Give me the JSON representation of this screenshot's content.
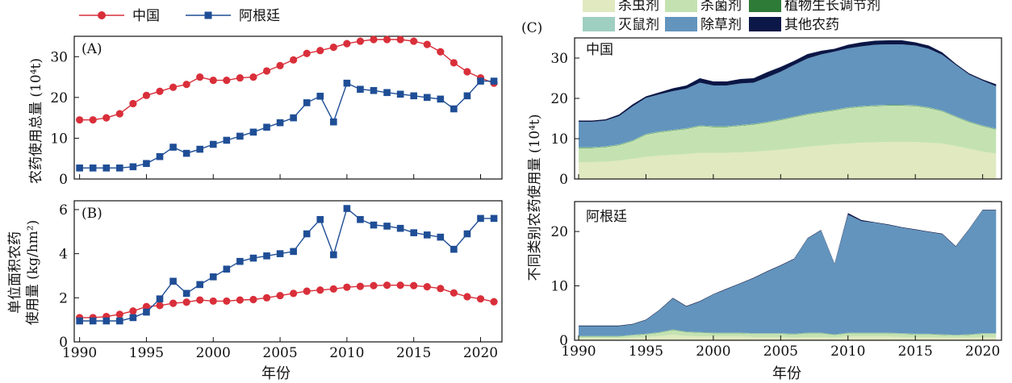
{
  "figure": {
    "legend_top": [
      {
        "label": "中国",
        "color": "#d92f3a",
        "marker": "circle"
      },
      {
        "label": "阿根廷",
        "color": "#1f4e96",
        "marker": "square"
      }
    ],
    "legend_c": [
      {
        "label": "杀虫剂",
        "color": "#e0e9bf"
      },
      {
        "label": "杀菌剂",
        "color": "#c4e2b1"
      },
      {
        "label": "植物生长调节剂",
        "color": "#2e7a37"
      },
      {
        "label": "灭鼠剂",
        "color": "#9fcfc0"
      },
      {
        "label": "除草剂",
        "color": "#6294bd"
      },
      {
        "label": "其他农药",
        "color": "#0b1746"
      }
    ],
    "xlabel": "年份"
  },
  "chart_data": [
    {
      "type": "line",
      "panel_label": "(A)",
      "ylabel": "农药使用总量 (10⁴t)",
      "xlim": [
        1989.6,
        2021.6
      ],
      "ylim": [
        0,
        35
      ],
      "yticks": [
        0,
        10,
        20,
        30
      ],
      "x": [
        1990,
        1991,
        1992,
        1993,
        1994,
        1995,
        1996,
        1997,
        1998,
        1999,
        2000,
        2001,
        2002,
        2003,
        2004,
        2005,
        2006,
        2007,
        2008,
        2009,
        2010,
        2011,
        2012,
        2013,
        2014,
        2015,
        2016,
        2017,
        2018,
        2019,
        2020,
        2021
      ],
      "series": [
        {
          "name": "中国",
          "values": [
            14.5,
            14.5,
            15.0,
            16.0,
            18.5,
            20.5,
            21.5,
            22.5,
            23.2,
            25.0,
            24.2,
            24.2,
            24.8,
            25.0,
            26.5,
            27.8,
            29.2,
            30.8,
            31.5,
            32.3,
            33.2,
            33.8,
            34.2,
            34.2,
            34.2,
            33.8,
            33.0,
            31.2,
            28.5,
            26.3,
            24.8,
            23.5
          ]
        },
        {
          "name": "阿根廷",
          "values": [
            2.7,
            2.7,
            2.7,
            2.7,
            3.0,
            3.8,
            5.5,
            7.8,
            6.3,
            7.3,
            8.5,
            9.5,
            10.5,
            11.5,
            12.7,
            13.8,
            15.0,
            18.7,
            20.3,
            14.0,
            23.5,
            22.0,
            21.7,
            21.2,
            20.8,
            20.4,
            20.0,
            19.6,
            17.2,
            20.4,
            24.0,
            24.0
          ]
        }
      ]
    },
    {
      "type": "line",
      "panel_label": "(B)",
      "ylabel": "单位面积农药使用量 (kg/hm²)",
      "xlim": [
        1989.6,
        2021.6
      ],
      "ylim": [
        0,
        6.4
      ],
      "yticks": [
        0,
        2,
        4,
        6
      ],
      "xticks": [
        1990,
        1995,
        2000,
        2005,
        2010,
        2015,
        2020
      ],
      "x": [
        1990,
        1991,
        1992,
        1993,
        1994,
        1995,
        1996,
        1997,
        1998,
        1999,
        2000,
        2001,
        2002,
        2003,
        2004,
        2005,
        2006,
        2007,
        2008,
        2009,
        2010,
        2011,
        2012,
        2013,
        2014,
        2015,
        2016,
        2017,
        2018,
        2019,
        2020,
        2021
      ],
      "series": [
        {
          "name": "中国",
          "values": [
            1.1,
            1.1,
            1.15,
            1.25,
            1.4,
            1.6,
            1.65,
            1.75,
            1.8,
            1.9,
            1.85,
            1.85,
            1.9,
            1.92,
            2.0,
            2.1,
            2.2,
            2.3,
            2.35,
            2.4,
            2.48,
            2.52,
            2.55,
            2.57,
            2.57,
            2.55,
            2.5,
            2.42,
            2.22,
            2.05,
            1.95,
            1.82
          ]
        },
        {
          "name": "阿根廷",
          "values": [
            0.95,
            0.95,
            0.95,
            0.95,
            1.1,
            1.35,
            1.95,
            2.75,
            2.2,
            2.6,
            2.95,
            3.3,
            3.65,
            3.8,
            3.9,
            4.0,
            4.1,
            4.9,
            5.55,
            3.95,
            6.05,
            5.55,
            5.3,
            5.25,
            5.15,
            4.95,
            4.85,
            4.75,
            4.2,
            4.9,
            5.6,
            5.6
          ]
        }
      ]
    },
    {
      "type": "area",
      "panel_label": "(C)",
      "ylabel": "不同类别农药使用量 (10⁴t)",
      "xticks": [
        1990,
        1995,
        2000,
        2005,
        2010,
        2015,
        2020
      ],
      "xlim": [
        1989.7,
        2021.4
      ],
      "subplots": [
        {
          "label": "中国",
          "ylim": [
            0,
            35
          ],
          "yticks": [
            0,
            10,
            20,
            30
          ],
          "x": [
            1990,
            1991,
            1992,
            1993,
            1994,
            1995,
            1996,
            1997,
            1998,
            1999,
            2000,
            2001,
            2002,
            2003,
            2004,
            2005,
            2006,
            2007,
            2008,
            2009,
            2010,
            2011,
            2012,
            2013,
            2014,
            2015,
            2016,
            2017,
            2018,
            2019,
            2020,
            2021
          ],
          "stack": [
            {
              "name": "杀虫剂",
              "values": [
                4.2,
                4.2,
                4.3,
                4.6,
                5.0,
                5.5,
                5.8,
                6.0,
                6.2,
                6.5,
                6.5,
                6.5,
                6.6,
                6.8,
                7.0,
                7.3,
                7.6,
                8.0,
                8.3,
                8.6,
                8.8,
                9.0,
                9.1,
                9.2,
                9.2,
                9.2,
                9.0,
                8.8,
                8.2,
                7.5,
                6.8,
                6.3
              ]
            },
            {
              "name": "杀菌剂",
              "values": [
                3.5,
                3.5,
                3.6,
                3.8,
                4.4,
                5.5,
                5.8,
                6.0,
                6.2,
                6.6,
                6.4,
                6.4,
                6.6,
                6.7,
                7.0,
                7.3,
                7.7,
                8.0,
                8.2,
                8.4,
                8.8,
                8.9,
                9.0,
                9.0,
                9.0,
                8.9,
                8.6,
                8.0,
                7.2,
                6.6,
                6.3,
                6.0
              ]
            },
            {
              "name": "植物生长调节剂",
              "values": [
                0.1,
                0.1,
                0.1,
                0.1,
                0.1,
                0.1,
                0.1,
                0.1,
                0.1,
                0.1,
                0.1,
                0.1,
                0.1,
                0.1,
                0.1,
                0.1,
                0.1,
                0.1,
                0.1,
                0.1,
                0.1,
                0.1,
                0.1,
                0.1,
                0.1,
                0.1,
                0.1,
                0.1,
                0.1,
                0.1,
                0.1,
                0.1
              ]
            },
            {
              "name": "灭鼠剂",
              "values": [
                0.1,
                0.1,
                0.1,
                0.1,
                0.1,
                0.1,
                0.1,
                0.1,
                0.1,
                0.1,
                0.1,
                0.1,
                0.1,
                0.1,
                0.1,
                0.1,
                0.1,
                0.1,
                0.1,
                0.1,
                0.1,
                0.1,
                0.1,
                0.1,
                0.1,
                0.1,
                0.1,
                0.1,
                0.1,
                0.1,
                0.1,
                0.1
              ]
            },
            {
              "name": "除草剂",
              "values": [
                6.3,
                6.3,
                6.4,
                7.0,
                8.4,
                8.9,
                9.2,
                9.6,
                9.8,
                10.6,
                10.1,
                10.1,
                10.3,
                10.2,
                11.0,
                11.8,
                12.8,
                13.7,
                14.2,
                14.4,
                14.6,
                14.8,
                15.0,
                15.0,
                15.0,
                14.8,
                14.5,
                13.8,
                12.7,
                11.6,
                11.1,
                10.5
              ]
            },
            {
              "name": "其他农药",
              "values": [
                0.3,
                0.3,
                0.3,
                0.4,
                0.5,
                0.4,
                0.5,
                0.7,
                0.8,
                1.1,
                1.0,
                1.0,
                1.1,
                1.1,
                1.3,
                1.2,
                1.0,
                1.1,
                0.9,
                0.7,
                0.9,
                1.0,
                1.0,
                1.0,
                1.0,
                0.8,
                0.8,
                0.6,
                0.3,
                0.3,
                0.3,
                0.5
              ]
            }
          ]
        },
        {
          "label": "阿根廷",
          "ylim": [
            0,
            25.5
          ],
          "yticks": [
            0,
            10,
            20
          ],
          "x": [
            1990,
            1991,
            1992,
            1993,
            1994,
            1995,
            1996,
            1997,
            1998,
            1999,
            2000,
            2001,
            2002,
            2003,
            2004,
            2005,
            2006,
            2007,
            2008,
            2009,
            2010,
            2011,
            2012,
            2013,
            2014,
            2015,
            2016,
            2017,
            2018,
            2019,
            2020,
            2021
          ],
          "stack": [
            {
              "name": "杀虫剂",
              "values": [
                0.4,
                0.4,
                0.4,
                0.4,
                0.5,
                0.6,
                0.8,
                1.0,
                0.8,
                0.7,
                0.7,
                0.7,
                0.7,
                0.6,
                0.6,
                0.6,
                0.5,
                0.6,
                0.6,
                0.5,
                0.7,
                0.7,
                0.7,
                0.7,
                0.6,
                0.6,
                0.6,
                0.5,
                0.5,
                0.5,
                0.6,
                0.6
              ]
            },
            {
              "name": "杀菌剂",
              "values": [
                0.3,
                0.3,
                0.3,
                0.3,
                0.4,
                0.5,
                0.6,
                0.9,
                0.7,
                0.7,
                0.6,
                0.6,
                0.6,
                0.6,
                0.6,
                0.6,
                0.6,
                0.7,
                0.7,
                0.5,
                0.6,
                0.6,
                0.6,
                0.6,
                0.6,
                0.5,
                0.5,
                0.5,
                0.4,
                0.5,
                0.6,
                0.6
              ]
            },
            {
              "name": "植物生长调节剂",
              "values": [
                0.05,
                0.05,
                0.05,
                0.05,
                0.05,
                0.05,
                0.05,
                0.05,
                0.05,
                0.05,
                0.05,
                0.05,
                0.05,
                0.05,
                0.05,
                0.05,
                0.05,
                0.05,
                0.05,
                0.05,
                0.05,
                0.05,
                0.05,
                0.05,
                0.05,
                0.05,
                0.05,
                0.05,
                0.05,
                0.05,
                0.05,
                0.05
              ]
            },
            {
              "name": "灭鼠剂",
              "values": [
                0.05,
                0.05,
                0.05,
                0.05,
                0.05,
                0.05,
                0.05,
                0.05,
                0.05,
                0.05,
                0.05,
                0.05,
                0.05,
                0.05,
                0.05,
                0.05,
                0.05,
                0.05,
                0.05,
                0.05,
                0.05,
                0.05,
                0.05,
                0.05,
                0.05,
                0.05,
                0.05,
                0.05,
                0.05,
                0.05,
                0.05,
                0.05
              ]
            },
            {
              "name": "除草剂",
              "values": [
                1.8,
                1.8,
                1.8,
                1.8,
                1.9,
                2.5,
                4.0,
                5.7,
                4.6,
                5.6,
                7.0,
                8.0,
                9.0,
                10.1,
                11.3,
                12.4,
                13.7,
                17.3,
                18.8,
                12.9,
                21.7,
                20.5,
                20.2,
                19.8,
                19.4,
                19.1,
                18.7,
                18.4,
                16.2,
                19.3,
                22.6,
                22.6
              ]
            },
            {
              "name": "其他农药",
              "values": [
                0.1,
                0.1,
                0.1,
                0.1,
                0.1,
                0.1,
                0.1,
                0.1,
                0.1,
                0.1,
                0.1,
                0.1,
                0.1,
                0.1,
                0.1,
                0.1,
                0.1,
                0.1,
                0.1,
                0.1,
                0.3,
                0.2,
                0.1,
                0.1,
                0.1,
                0.1,
                0.1,
                0.1,
                0.1,
                0.1,
                0.1,
                0.1
              ]
            }
          ]
        }
      ]
    }
  ]
}
